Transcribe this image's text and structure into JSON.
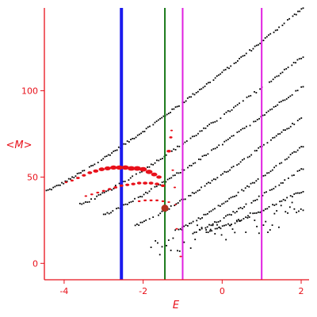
{
  "chart_data": {
    "type": "scatter",
    "title": "",
    "xlabel": "E",
    "ylabel": "<M>",
    "xlim": [
      -4.5,
      2.2
    ],
    "ylim": [
      -9.5,
      148
    ],
    "grid": false,
    "colors": {
      "axis": "#e8101a",
      "background_points": "#000000",
      "highlight_points": "#e8101a",
      "marker": "#b0321e"
    },
    "x_ticks": [
      {
        "value": -4,
        "label": "-4"
      },
      {
        "value": -2,
        "label": "-2"
      },
      {
        "value": 0,
        "label": "0"
      },
      {
        "value": 2,
        "label": "2"
      }
    ],
    "y_ticks": [
      {
        "value": 0,
        "label": "0"
      },
      {
        "value": 50,
        "label": "50"
      },
      {
        "value": 100,
        "label": "100"
      }
    ],
    "vertical_lines": [
      {
        "name": "blue-line",
        "x": -2.55,
        "color": "#1a1aee",
        "width": 4
      },
      {
        "name": "green-line",
        "x": -1.45,
        "color": "#1c7a1c",
        "width": 2
      },
      {
        "name": "magenta-line-left",
        "x": -1.0,
        "color": "#e020e0",
        "width": 2
      },
      {
        "name": "magenta-line-right",
        "x": 1.0,
        "color": "#e020e0",
        "width": 2
      }
    ],
    "series": [
      {
        "style": "background-black",
        "bands": [
          {
            "x_from": -4.45,
            "x_to": 2.05,
            "y_from": 42,
            "y_to": 148,
            "n": 150
          },
          {
            "x_from": -3.6,
            "x_to": 2.05,
            "y_from": 34,
            "y_to": 120,
            "n": 120
          },
          {
            "x_from": -3.0,
            "x_to": 2.05,
            "y_from": 28,
            "y_to": 103,
            "n": 110
          },
          {
            "x_from": -2.2,
            "x_to": 2.05,
            "y_from": 22,
            "y_to": 85,
            "n": 95
          },
          {
            "x_from": -1.1,
            "x_to": 2.05,
            "y_from": 20,
            "y_to": 68,
            "n": 70
          },
          {
            "x_from": -0.7,
            "x_to": 2.05,
            "y_from": 18,
            "y_to": 55,
            "n": 60
          },
          {
            "x_from": -0.4,
            "x_to": 2.05,
            "y_from": 18,
            "y_to": 42,
            "n": 55
          },
          {
            "x_from": -1.8,
            "x_to": 2.05,
            "y_from": 10,
            "y_to": 30,
            "n": 70,
            "jitter": 7
          }
        ]
      },
      {
        "style": "highlight-red",
        "points": [
          {
            "x": -3.95,
            "y": 47,
            "s": 1.4
          },
          {
            "x": -3.8,
            "y": 48,
            "s": 1.6
          },
          {
            "x": -3.65,
            "y": 49.5,
            "s": 1.8
          },
          {
            "x": -3.5,
            "y": 51,
            "s": 2.0
          },
          {
            "x": -3.35,
            "y": 52.5,
            "s": 2.3
          },
          {
            "x": -3.2,
            "y": 53.5,
            "s": 2.6
          },
          {
            "x": -3.05,
            "y": 54.5,
            "s": 2.9
          },
          {
            "x": -2.9,
            "y": 55,
            "s": 3.1
          },
          {
            "x": -2.75,
            "y": 55.5,
            "s": 3.3
          },
          {
            "x": -2.6,
            "y": 55.5,
            "s": 3.4
          },
          {
            "x": -2.45,
            "y": 55.5,
            "s": 3.5
          },
          {
            "x": -2.3,
            "y": 55,
            "s": 3.6
          },
          {
            "x": -2.15,
            "y": 55,
            "s": 3.7
          },
          {
            "x": -2.0,
            "y": 54.5,
            "s": 3.6
          },
          {
            "x": -1.85,
            "y": 53,
            "s": 3.4
          },
          {
            "x": -1.72,
            "y": 51.5,
            "s": 3.0
          },
          {
            "x": -1.6,
            "y": 50,
            "s": 2.6
          },
          {
            "x": -3.45,
            "y": 39,
            "s": 1.3
          },
          {
            "x": -3.3,
            "y": 40,
            "s": 1.4
          },
          {
            "x": -3.15,
            "y": 41,
            "s": 1.5
          },
          {
            "x": -3.0,
            "y": 42,
            "s": 1.6
          },
          {
            "x": -2.85,
            "y": 43,
            "s": 1.7
          },
          {
            "x": -2.7,
            "y": 44,
            "s": 1.8
          },
          {
            "x": -2.55,
            "y": 45,
            "s": 1.9
          },
          {
            "x": -2.4,
            "y": 45.5,
            "s": 2.0
          },
          {
            "x": -2.25,
            "y": 46,
            "s": 2.1
          },
          {
            "x": -2.1,
            "y": 46.5,
            "s": 2.2
          },
          {
            "x": -1.95,
            "y": 46.5,
            "s": 2.3
          },
          {
            "x": -1.8,
            "y": 46.5,
            "s": 2.3
          },
          {
            "x": -1.65,
            "y": 46,
            "s": 2.2
          },
          {
            "x": -1.5,
            "y": 45,
            "s": 2.1
          },
          {
            "x": -2.1,
            "y": 36,
            "s": 1.4
          },
          {
            "x": -1.95,
            "y": 36.5,
            "s": 1.5
          },
          {
            "x": -1.8,
            "y": 36.5,
            "s": 1.5
          },
          {
            "x": -1.65,
            "y": 36.5,
            "s": 1.5
          },
          {
            "x": -1.5,
            "y": 36,
            "s": 1.4
          },
          {
            "x": -1.35,
            "y": 35.5,
            "s": 1.3
          },
          {
            "x": -1.35,
            "y": 65,
            "s": 2.2
          },
          {
            "x": -1.3,
            "y": 73,
            "s": 1.6
          },
          {
            "x": -1.28,
            "y": 77,
            "s": 1.2
          },
          {
            "x": -1.25,
            "y": 54,
            "s": 1.2
          },
          {
            "x": -1.2,
            "y": 44,
            "s": 1.2
          },
          {
            "x": -1.18,
            "y": 34,
            "s": 1.1
          },
          {
            "x": -1.15,
            "y": 20,
            "s": 1.2
          },
          {
            "x": -1.05,
            "y": 4,
            "s": 1.2
          }
        ]
      }
    ],
    "marker_point": {
      "x": -1.45,
      "y": 32,
      "r": 4.5
    }
  }
}
